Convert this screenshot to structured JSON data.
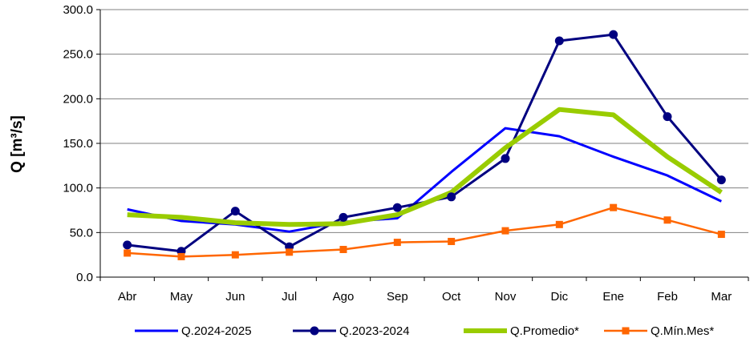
{
  "chart_data": {
    "type": "line",
    "title": "",
    "xlabel": "",
    "ylabel": "Q [m³/s]",
    "ylim": [
      0,
      300
    ],
    "y_ticks": [
      "0.0",
      "50.0",
      "100.0",
      "150.0",
      "200.0",
      "250.0",
      "300.0"
    ],
    "grid": true,
    "legend_position": "bottom",
    "categories": [
      "Abr",
      "May",
      "Jun",
      "Jul",
      "Ago",
      "Sep",
      "Oct",
      "Nov",
      "Dic",
      "Ene",
      "Feb",
      "Mar"
    ],
    "series": [
      {
        "name": "Q.2024-2025",
        "color": "#0000ff",
        "marker": "none",
        "values": [
          76,
          63,
          59,
          51,
          62,
          66,
          118,
          167,
          158,
          135,
          114,
          85
        ]
      },
      {
        "name": "Q.2023-2024",
        "color": "#000080",
        "marker": "circle",
        "values": [
          36,
          29,
          74,
          34,
          67,
          78,
          90,
          133,
          265,
          272,
          180,
          109
        ]
      },
      {
        "name": "Q.Promedio*",
        "color": "#99cc00",
        "marker": "none",
        "values": [
          70,
          67,
          61,
          59,
          60,
          70,
          95,
          145,
          188,
          182,
          135,
          95
        ]
      },
      {
        "name": "Q.Mín.Mes*",
        "color": "#ff6600",
        "marker": "square",
        "values": [
          27,
          23,
          25,
          28,
          31,
          39,
          40,
          52,
          59,
          78,
          64,
          48
        ]
      }
    ]
  }
}
